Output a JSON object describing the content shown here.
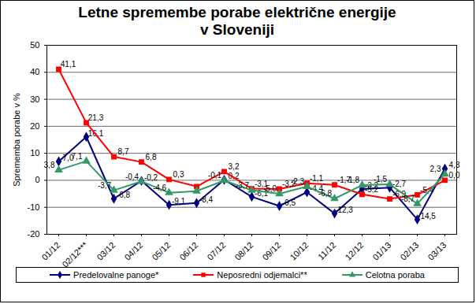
{
  "chart_data": {
    "type": "line",
    "title": [
      "Letne spremembe porabe električne energije",
      "v Sloveniji"
    ],
    "y_label": "Sprememba porabe v %",
    "categories": [
      "01/12",
      "02/12***",
      "03/12",
      "04/12",
      "05/12",
      "06/12",
      "07/12",
      "08/12",
      "09/12",
      "10/12",
      "11/12",
      "12/12",
      "01/13",
      "02/13",
      "03/13"
    ],
    "series": [
      {
        "name": "Predelovalne panoge*",
        "color": "#000080",
        "marker": "diamond",
        "values": [
          7.0,
          16.1,
          -6.8,
          -0.2,
          -9.1,
          -8.4,
          0.2,
          -6.1,
          -9.5,
          -4.4,
          -12.3,
          -3.2,
          -2.7,
          -14.5,
          4.3
        ],
        "value_labels": [
          "7,0",
          "16,1",
          "-6,8",
          "-0,2",
          "-9,1",
          "-8,4",
          "0,2",
          "-6,1",
          "-9,5",
          "-4,4",
          "-12,3",
          "-3,2",
          "-2,7",
          "-14,5",
          "4,3"
        ]
      },
      {
        "name": "Neposredni odjemalci**",
        "color": "#ff0000",
        "marker": "square",
        "values": [
          41.1,
          21.3,
          8.7,
          6.8,
          0.3,
          -2.3,
          3.2,
          -3.1,
          -3.2,
          -1.1,
          -1.7,
          -5.2,
          -6.9,
          -5.4,
          0.0
        ],
        "value_labels": [
          "41,1",
          "21,3",
          "8,7",
          "6,8",
          "0,3",
          null,
          "3,2",
          "-3,1",
          "-3,2",
          "-1,1",
          "-1,7",
          "-5,2",
          "-6,9",
          "-5,4",
          "0,0"
        ]
      },
      {
        "name": "Celotna poraba",
        "color": "#339966",
        "marker": "triangle",
        "values": [
          3.8,
          7.1,
          -3.7,
          -0.4,
          -4.6,
          -4.0,
          -0.1,
          -3.7,
          -5.0,
          -2.3,
          -6.8,
          -1.8,
          -1.5,
          -8.7,
          2.3
        ],
        "value_labels": [
          "3,8",
          "7,1",
          "-3,7",
          "-0,4",
          "-4,6",
          null,
          "-0,1",
          "-3,7",
          "-5,0",
          "-2,3",
          "-6,8",
          "-1,8",
          "-1,5",
          "-8,7",
          "2,3"
        ]
      }
    ],
    "ylim": [
      -20,
      50
    ],
    "yticks": [
      -20,
      -10,
      0,
      10,
      20,
      30,
      40,
      50
    ],
    "grid": true,
    "data_labels": true,
    "legend": "bottom"
  }
}
